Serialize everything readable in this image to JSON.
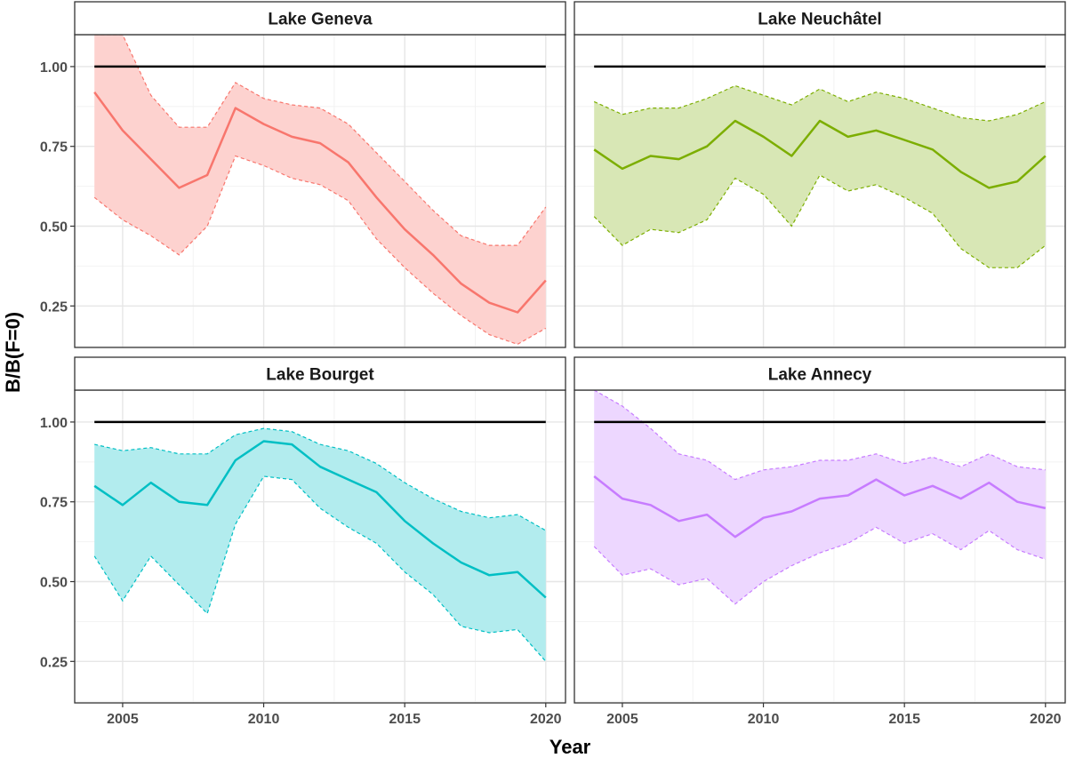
{
  "chart_data": {
    "type": "line",
    "xlabel": "Year",
    "ylabel": "B/B(F=0)",
    "xlim": [
      2003.3,
      2020.7
    ],
    "ylim": [
      0.12,
      1.1
    ],
    "x_ticks": [
      2005,
      2010,
      2015,
      2020
    ],
    "x_tick_labels": [
      "2005",
      "2010",
      "2015",
      "2020"
    ],
    "y_ticks": [
      0.25,
      0.5,
      0.75,
      1.0
    ],
    "y_tick_labels": [
      "0.25",
      "0.50",
      "0.75",
      "1.00"
    ],
    "reference_line": 1.0,
    "grid": true,
    "legend": "none",
    "x": [
      2004,
      2005,
      2006,
      2007,
      2008,
      2009,
      2010,
      2011,
      2012,
      2013,
      2014,
      2015,
      2016,
      2017,
      2018,
      2019,
      2020
    ],
    "panels": [
      {
        "name": "Lake Geneva",
        "color": "#F8766D",
        "fill": "#FDD2CF",
        "values": [
          0.92,
          0.8,
          0.71,
          0.62,
          0.66,
          0.87,
          0.82,
          0.78,
          0.76,
          0.7,
          0.59,
          0.49,
          0.41,
          0.32,
          0.26,
          0.23,
          0.33
        ],
        "upper": [
          1.1,
          1.1,
          0.91,
          0.81,
          0.81,
          0.95,
          0.9,
          0.88,
          0.87,
          0.82,
          0.73,
          0.64,
          0.55,
          0.47,
          0.44,
          0.44,
          0.56
        ],
        "lower": [
          0.59,
          0.52,
          0.47,
          0.41,
          0.5,
          0.72,
          0.69,
          0.65,
          0.63,
          0.58,
          0.46,
          0.37,
          0.29,
          0.22,
          0.16,
          0.13,
          0.18
        ]
      },
      {
        "name": "Lake Neuchâtel",
        "color": "#7CAE00",
        "fill": "#D8E7B5",
        "values": [
          0.74,
          0.68,
          0.72,
          0.71,
          0.75,
          0.83,
          0.78,
          0.72,
          0.83,
          0.78,
          0.8,
          0.77,
          0.74,
          0.67,
          0.62,
          0.64,
          0.72
        ],
        "upper": [
          0.89,
          0.85,
          0.87,
          0.87,
          0.9,
          0.94,
          0.91,
          0.88,
          0.93,
          0.89,
          0.92,
          0.9,
          0.87,
          0.84,
          0.83,
          0.85,
          0.89
        ],
        "lower": [
          0.53,
          0.44,
          0.49,
          0.48,
          0.52,
          0.65,
          0.6,
          0.5,
          0.66,
          0.61,
          0.63,
          0.59,
          0.54,
          0.43,
          0.37,
          0.37,
          0.44
        ]
      },
      {
        "name": "Lake Bourget",
        "color": "#00BFC4",
        "fill": "#B2ECEE",
        "values": [
          0.8,
          0.74,
          0.81,
          0.75,
          0.74,
          0.88,
          0.94,
          0.93,
          0.86,
          0.82,
          0.78,
          0.69,
          0.62,
          0.56,
          0.52,
          0.53,
          0.45
        ],
        "upper": [
          0.93,
          0.91,
          0.92,
          0.9,
          0.9,
          0.96,
          0.98,
          0.97,
          0.93,
          0.91,
          0.87,
          0.81,
          0.76,
          0.72,
          0.7,
          0.71,
          0.66
        ],
        "lower": [
          0.58,
          0.44,
          0.58,
          0.49,
          0.4,
          0.68,
          0.83,
          0.82,
          0.73,
          0.67,
          0.62,
          0.53,
          0.46,
          0.36,
          0.34,
          0.35,
          0.25
        ]
      },
      {
        "name": "Lake Annecy",
        "color": "#C77CFF",
        "fill": "#EDD7FF",
        "values": [
          0.83,
          0.76,
          0.74,
          0.69,
          0.71,
          0.64,
          0.7,
          0.72,
          0.76,
          0.77,
          0.82,
          0.77,
          0.8,
          0.76,
          0.81,
          0.75,
          0.73
        ],
        "upper": [
          1.1,
          1.05,
          0.98,
          0.9,
          0.88,
          0.82,
          0.85,
          0.86,
          0.88,
          0.88,
          0.9,
          0.87,
          0.89,
          0.86,
          0.9,
          0.86,
          0.85
        ],
        "lower": [
          0.61,
          0.52,
          0.54,
          0.49,
          0.51,
          0.43,
          0.5,
          0.55,
          0.59,
          0.62,
          0.67,
          0.62,
          0.65,
          0.6,
          0.66,
          0.6,
          0.57
        ]
      }
    ]
  }
}
